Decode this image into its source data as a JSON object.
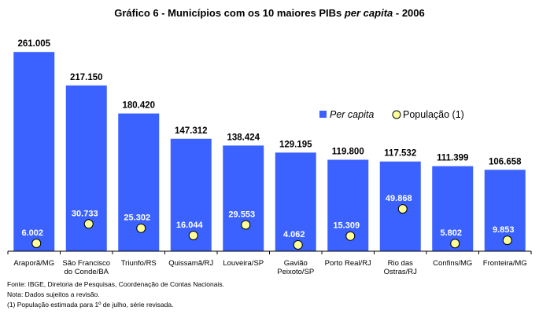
{
  "chart_data": {
    "type": "bar",
    "title_main": "Gráfico 6 - Municípios com os 10 maiores PIBs ",
    "title_italic": "per capita",
    "title_end": " - 2006",
    "categories": [
      [
        "Araporã/MG"
      ],
      [
        "São Francisco",
        "do Conde/BA"
      ],
      [
        "Triunfo/RS"
      ],
      [
        "Quissamã/RJ"
      ],
      [
        "Louveira/SP"
      ],
      [
        "Gavião",
        "Peixoto/SP"
      ],
      [
        "Porto Real/RJ"
      ],
      [
        "Rio das",
        "Ostras/RJ"
      ],
      [
        "Confins/MG"
      ],
      [
        "Fronteira/MG"
      ]
    ],
    "series": [
      {
        "name": "Per capita",
        "values": [
          261005,
          217150,
          180420,
          147312,
          138424,
          129195,
          119800,
          117532,
          111399,
          106658
        ],
        "labels": [
          "261.005",
          "217.150",
          "180.420",
          "147.312",
          "138.424",
          "129.195",
          "119.800",
          "117.532",
          "111.399",
          "106.658"
        ],
        "color": "#3b62ff"
      },
      {
        "name": "População (1)",
        "values": [
          6002,
          30733,
          25302,
          16044,
          29553,
          4062,
          15309,
          49868,
          5802,
          9853
        ],
        "labels": [
          "6.002",
          "30.733",
          "25.302",
          "16.044",
          "29.553",
          "4.062",
          "15.309",
          "49.868",
          "5.802",
          "9.853"
        ],
        "color": "#ffff99"
      }
    ],
    "legend_position": "right, inside plot area"
  },
  "notes": [
    "Fonte: IBGE, Diretoria de Pesquisas, Coordenação de Contas Nacionais.",
    "Nota: Dados sujeitos a revisão.",
    "(1) População estimada para 1º de julho, série revisada."
  ]
}
